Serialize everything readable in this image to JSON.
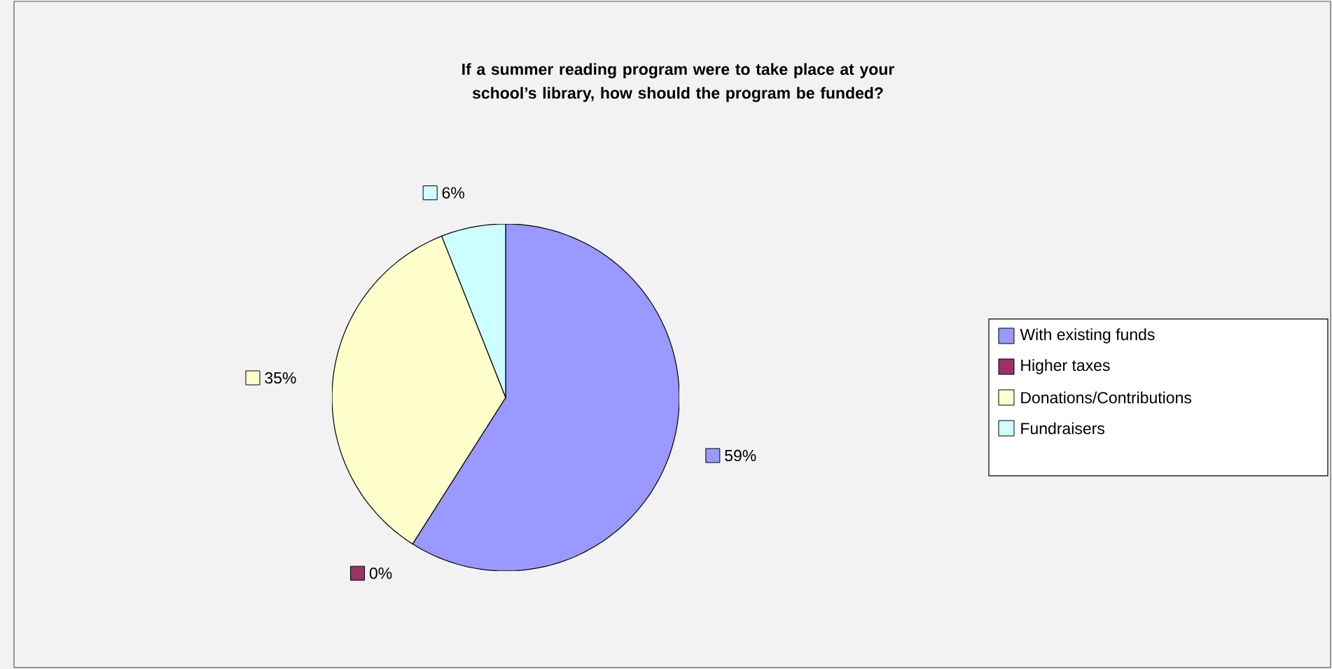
{
  "chart_data": {
    "type": "pie",
    "title": "If a summer reading program were to take place at your school’s library, how should the program be funded?",
    "categories": [
      "With existing funds",
      "Higher taxes",
      "Donations/Contributions",
      "Fundraisers"
    ],
    "values": [
      59,
      0,
      35,
      6
    ],
    "value_labels": [
      "59%",
      "0%",
      "35%",
      "6%"
    ],
    "colors": [
      "#9999ff",
      "#993366",
      "#ffffcc",
      "#ccffff"
    ],
    "legend": "right"
  }
}
